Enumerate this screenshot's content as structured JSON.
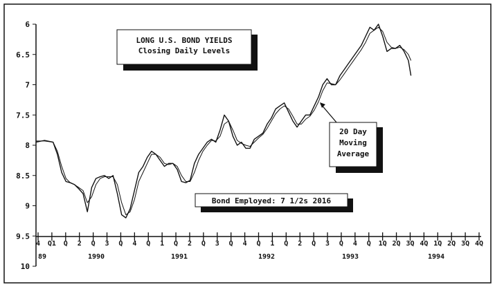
{
  "chart_data": {
    "type": "line",
    "title": "LONG U.S. BOND YIELDS",
    "subtitle": "Closing Daily Levels",
    "footnote": "Bond Employed: 7 1/2s  2016",
    "annotation": [
      "20 Day",
      "Moving",
      "Average"
    ],
    "y_axis_inverted": true,
    "ylim": [
      6,
      10
    ],
    "y_ticks": [
      "6",
      "6.5",
      "7",
      "7.5",
      "8",
      "8.5",
      "9",
      "9.5",
      "10"
    ],
    "x_tick_labels": [
      "4",
      "Q1",
      "Q",
      "2",
      "Q",
      "3",
      "Q",
      "4",
      "Q",
      "1",
      "Q",
      "2",
      "Q",
      "3",
      "Q",
      "4",
      "Q",
      "1",
      "Q",
      "2",
      "Q",
      "3",
      "Q",
      "4",
      "Q",
      "1Q",
      "2Q",
      "3Q",
      "4Q",
      "1Q",
      "2Q",
      "3Q",
      "4Q"
    ],
    "year_labels": [
      "89",
      "1990",
      "1991",
      "1992",
      "1993",
      "1994"
    ],
    "xlim": [
      1989.75,
      1994.95
    ],
    "series": [
      {
        "values": [
          [
            1989.75,
            7.95
          ],
          [
            1989.85,
            7.92
          ],
          [
            1989.95,
            7.95
          ],
          [
            1990.0,
            8.15
          ],
          [
            1990.05,
            8.45
          ],
          [
            1990.1,
            8.6
          ],
          [
            1990.15,
            8.62
          ],
          [
            1990.2,
            8.65
          ],
          [
            1990.25,
            8.72
          ],
          [
            1990.3,
            8.8
          ],
          [
            1990.35,
            9.1
          ],
          [
            1990.4,
            8.7
          ],
          [
            1990.45,
            8.55
          ],
          [
            1990.5,
            8.52
          ],
          [
            1990.55,
            8.5
          ],
          [
            1990.6,
            8.55
          ],
          [
            1990.65,
            8.5
          ],
          [
            1990.7,
            8.8
          ],
          [
            1990.75,
            9.15
          ],
          [
            1990.8,
            9.2
          ],
          [
            1990.85,
            9.05
          ],
          [
            1990.9,
            8.75
          ],
          [
            1990.95,
            8.45
          ],
          [
            1991.0,
            8.35
          ],
          [
            1991.05,
            8.2
          ],
          [
            1991.1,
            8.1
          ],
          [
            1991.15,
            8.15
          ],
          [
            1991.2,
            8.25
          ],
          [
            1991.25,
            8.35
          ],
          [
            1991.3,
            8.3
          ],
          [
            1991.35,
            8.3
          ],
          [
            1991.4,
            8.4
          ],
          [
            1991.45,
            8.6
          ],
          [
            1991.5,
            8.62
          ],
          [
            1991.55,
            8.58
          ],
          [
            1991.6,
            8.3
          ],
          [
            1991.65,
            8.15
          ],
          [
            1991.7,
            8.05
          ],
          [
            1991.75,
            7.95
          ],
          [
            1991.8,
            7.9
          ],
          [
            1991.85,
            7.95
          ],
          [
            1991.9,
            7.75
          ],
          [
            1991.95,
            7.5
          ],
          [
            1992.0,
            7.6
          ],
          [
            1992.05,
            7.85
          ],
          [
            1992.1,
            8.0
          ],
          [
            1992.15,
            7.95
          ],
          [
            1992.2,
            8.05
          ],
          [
            1992.25,
            8.05
          ],
          [
            1992.3,
            7.9
          ],
          [
            1992.35,
            7.85
          ],
          [
            1992.4,
            7.8
          ],
          [
            1992.45,
            7.65
          ],
          [
            1992.5,
            7.55
          ],
          [
            1992.55,
            7.4
          ],
          [
            1992.6,
            7.35
          ],
          [
            1992.65,
            7.3
          ],
          [
            1992.7,
            7.45
          ],
          [
            1992.75,
            7.6
          ],
          [
            1992.8,
            7.7
          ],
          [
            1992.85,
            7.6
          ],
          [
            1992.9,
            7.5
          ],
          [
            1992.95,
            7.5
          ],
          [
            1993.0,
            7.35
          ],
          [
            1993.05,
            7.2
          ],
          [
            1993.1,
            7.0
          ],
          [
            1993.15,
            6.9
          ],
          [
            1993.2,
            7.0
          ],
          [
            1993.25,
            7.0
          ],
          [
            1993.3,
            6.85
          ],
          [
            1993.35,
            6.75
          ],
          [
            1993.4,
            6.65
          ],
          [
            1993.45,
            6.55
          ],
          [
            1993.5,
            6.45
          ],
          [
            1993.55,
            6.35
          ],
          [
            1993.6,
            6.2
          ],
          [
            1993.65,
            6.05
          ],
          [
            1993.7,
            6.1
          ],
          [
            1993.75,
            6.0
          ],
          [
            1993.8,
            6.2
          ],
          [
            1993.85,
            6.45
          ],
          [
            1993.9,
            6.4
          ],
          [
            1993.95,
            6.4
          ],
          [
            1994.0,
            6.35
          ],
          [
            1994.05,
            6.45
          ],
          [
            1994.1,
            6.6
          ],
          [
            1994.13,
            6.85
          ]
        ]
      },
      {
        "values": [
          [
            1989.75,
            7.93
          ],
          [
            1989.85,
            7.93
          ],
          [
            1989.95,
            7.95
          ],
          [
            1990.0,
            8.1
          ],
          [
            1990.05,
            8.35
          ],
          [
            1990.1,
            8.55
          ],
          [
            1990.15,
            8.62
          ],
          [
            1990.2,
            8.65
          ],
          [
            1990.25,
            8.7
          ],
          [
            1990.3,
            8.75
          ],
          [
            1990.35,
            8.95
          ],
          [
            1990.4,
            8.85
          ],
          [
            1990.45,
            8.65
          ],
          [
            1990.5,
            8.55
          ],
          [
            1990.55,
            8.52
          ],
          [
            1990.6,
            8.52
          ],
          [
            1990.65,
            8.52
          ],
          [
            1990.7,
            8.65
          ],
          [
            1990.75,
            8.95
          ],
          [
            1990.8,
            9.15
          ],
          [
            1990.85,
            9.1
          ],
          [
            1990.9,
            8.9
          ],
          [
            1990.95,
            8.6
          ],
          [
            1991.0,
            8.45
          ],
          [
            1991.05,
            8.3
          ],
          [
            1991.1,
            8.15
          ],
          [
            1991.15,
            8.15
          ],
          [
            1991.2,
            8.2
          ],
          [
            1991.25,
            8.3
          ],
          [
            1991.3,
            8.32
          ],
          [
            1991.35,
            8.3
          ],
          [
            1991.4,
            8.35
          ],
          [
            1991.45,
            8.5
          ],
          [
            1991.5,
            8.6
          ],
          [
            1991.55,
            8.6
          ],
          [
            1991.6,
            8.45
          ],
          [
            1991.65,
            8.25
          ],
          [
            1991.7,
            8.1
          ],
          [
            1991.75,
            8.0
          ],
          [
            1991.8,
            7.92
          ],
          [
            1991.85,
            7.93
          ],
          [
            1991.9,
            7.85
          ],
          [
            1991.95,
            7.65
          ],
          [
            1992.0,
            7.6
          ],
          [
            1992.05,
            7.75
          ],
          [
            1992.1,
            7.92
          ],
          [
            1992.15,
            7.97
          ],
          [
            1992.2,
            8.0
          ],
          [
            1992.25,
            8.02
          ],
          [
            1992.3,
            7.95
          ],
          [
            1992.35,
            7.88
          ],
          [
            1992.4,
            7.82
          ],
          [
            1992.45,
            7.72
          ],
          [
            1992.5,
            7.6
          ],
          [
            1992.55,
            7.48
          ],
          [
            1992.6,
            7.4
          ],
          [
            1992.65,
            7.35
          ],
          [
            1992.7,
            7.4
          ],
          [
            1992.75,
            7.52
          ],
          [
            1992.8,
            7.65
          ],
          [
            1992.85,
            7.65
          ],
          [
            1992.9,
            7.57
          ],
          [
            1992.95,
            7.52
          ],
          [
            1993.0,
            7.42
          ],
          [
            1993.05,
            7.28
          ],
          [
            1993.1,
            7.1
          ],
          [
            1993.15,
            6.97
          ],
          [
            1993.2,
            6.98
          ],
          [
            1993.25,
            7.0
          ],
          [
            1993.3,
            6.92
          ],
          [
            1993.35,
            6.82
          ],
          [
            1993.4,
            6.72
          ],
          [
            1993.45,
            6.62
          ],
          [
            1993.5,
            6.52
          ],
          [
            1993.55,
            6.42
          ],
          [
            1993.6,
            6.3
          ],
          [
            1993.65,
            6.15
          ],
          [
            1993.7,
            6.1
          ],
          [
            1993.75,
            6.05
          ],
          [
            1993.8,
            6.12
          ],
          [
            1993.85,
            6.3
          ],
          [
            1993.9,
            6.38
          ],
          [
            1993.95,
            6.4
          ],
          [
            1994.0,
            6.38
          ],
          [
            1994.05,
            6.42
          ],
          [
            1994.1,
            6.5
          ],
          [
            1994.13,
            6.6
          ]
        ]
      }
    ]
  }
}
